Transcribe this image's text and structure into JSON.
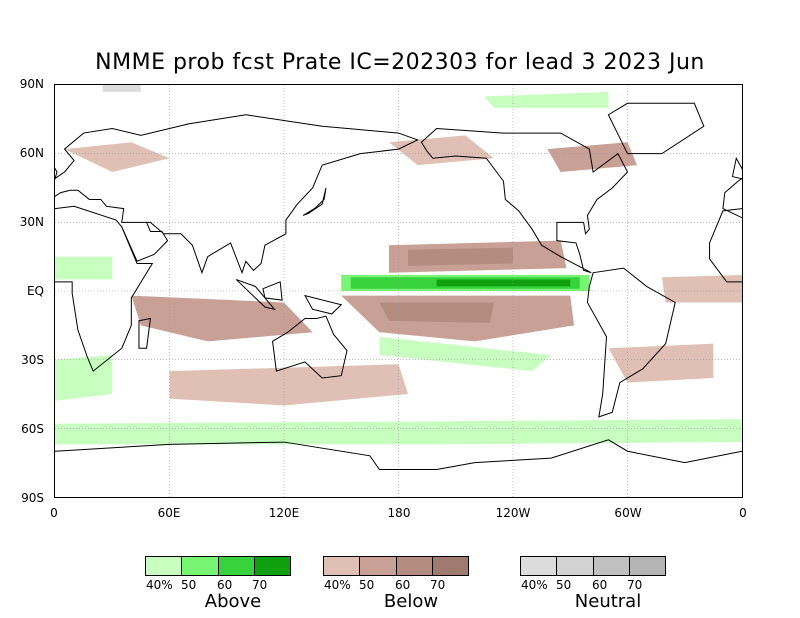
{
  "title": "NMME prob fcst Prate IC=202303 for lead 3 2023 Jun",
  "lat_labels": [
    "90N",
    "60N",
    "30N",
    "EQ",
    "30S",
    "60S",
    "90S"
  ],
  "lon_labels": [
    "0",
    "60E",
    "120E",
    "180",
    "120W",
    "60W",
    "0"
  ],
  "legends": [
    {
      "name": "Above",
      "ticks": [
        "40%",
        "50",
        "60",
        "70"
      ],
      "colors": [
        "#c8ffc0",
        "#78f573",
        "#37d23c",
        "#0fa00f"
      ]
    },
    {
      "name": "Below",
      "ticks": [
        "40%",
        "50",
        "60",
        "70"
      ],
      "colors": [
        "#e0c0b5",
        "#c8a096",
        "#b48c80",
        "#a07a6e"
      ]
    },
    {
      "name": "Neutral",
      "ticks": [
        "40%",
        "50",
        "60",
        "70"
      ],
      "colors": [
        "#dcdcdc",
        "#d2d2d2",
        "#c0c0c0",
        "#b4b4b4"
      ]
    }
  ]
}
